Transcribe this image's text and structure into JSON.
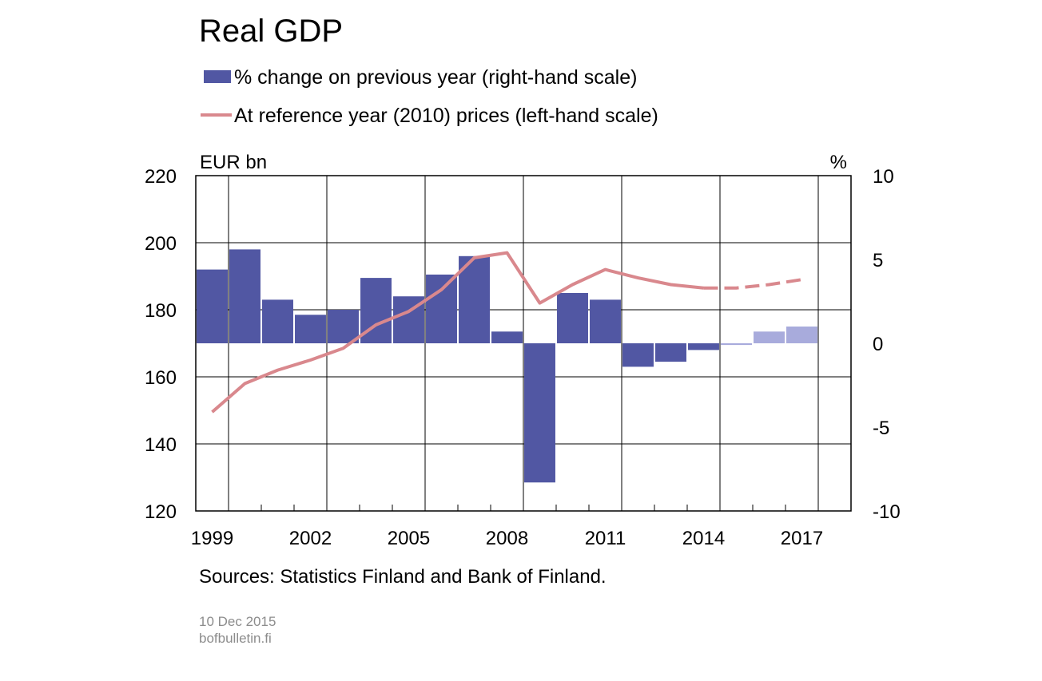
{
  "chart_data": {
    "type": "bar",
    "title": "Real GDP",
    "left_unit": "EUR bn",
    "right_unit": "%",
    "left_axis": {
      "min": 120,
      "max": 220,
      "ticks": [
        "120",
        "140",
        "160",
        "180",
        "200",
        "220"
      ],
      "tick_values": [
        120,
        140,
        160,
        180,
        200,
        220
      ]
    },
    "right_axis": {
      "min": -10,
      "max": 10,
      "ticks": [
        "-10",
        "-5",
        "0",
        "5",
        "10"
      ],
      "tick_values": [
        -10,
        -5,
        0,
        5,
        10
      ]
    },
    "x_tick_labels": [
      "1999",
      "2002",
      "2005",
      "2008",
      "2011",
      "2014",
      "2017"
    ],
    "x_tick_years": [
      1999,
      2002,
      2005,
      2008,
      2011,
      2014,
      2017
    ],
    "years": [
      1999,
      2000,
      2001,
      2002,
      2003,
      2004,
      2005,
      2006,
      2007,
      2008,
      2009,
      2010,
      2011,
      2012,
      2013,
      2014,
      2015,
      2016,
      2017
    ],
    "grid": true,
    "legend_position": "top",
    "series": [
      {
        "name": "% change on previous year (right-hand scale)",
        "kind": "bar",
        "axis": "right",
        "color": "#5157a3",
        "forecast_color": "#a8abdc",
        "values": [
          4.4,
          5.6,
          2.6,
          1.7,
          2.0,
          3.9,
          2.8,
          4.1,
          5.2,
          0.7,
          -8.3,
          3.0,
          2.6,
          -1.4,
          -1.1,
          -0.4,
          -0.1,
          0.7,
          1.0
        ],
        "forecast_from_year": 2015
      },
      {
        "name": "At reference year (2010) prices (left-hand scale)",
        "kind": "line",
        "axis": "left",
        "color": "#d9888d",
        "values": [
          149.5,
          158.0,
          162.0,
          165.0,
          168.5,
          175.5,
          179.5,
          186.0,
          195.5,
          197.0,
          182.0,
          187.5,
          192.0,
          189.5,
          187.5,
          186.5,
          186.5,
          187.5,
          189.0
        ],
        "forecast_from_year": 2014
      }
    ]
  },
  "source_note": "Sources: Statistics Finland and Bank of Finland.",
  "footer": {
    "date": "10 Dec 2015",
    "site": "bofbulletin.fi"
  }
}
